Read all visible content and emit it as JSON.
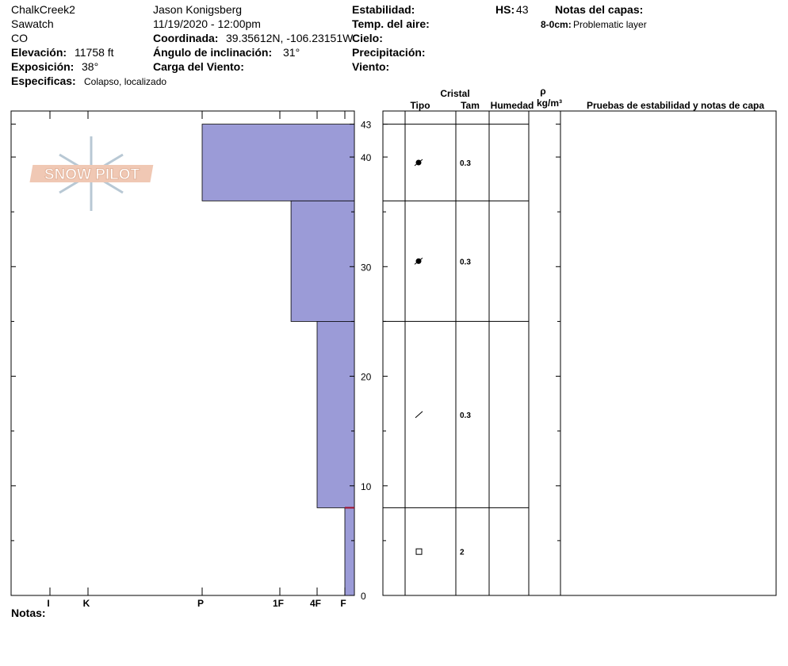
{
  "header": {
    "site": "ChalkCreek2",
    "range": "Sawatch",
    "state": "CO",
    "elevation_label": "Elevación:",
    "elevation": "11758 ft",
    "aspect_label": "Exposición:",
    "aspect": "38°",
    "specifics_label": "Especificas:",
    "specifics": "Colapso, localizado",
    "observer": "Jason Konigsberg",
    "datetime": "11/19/2020 - 12:00pm",
    "coord_label": "Coordinada:",
    "coord": "39.35612N, -106.23151W",
    "slope_label": "Ángulo de inclinación:",
    "slope": "31°",
    "wind_load_label": "Carga del Viento:",
    "stability_label": "Estabilidad:",
    "air_temp_label": "Temp. del aire:",
    "sky_label": "Cielo:",
    "precip_label": "Precipitación:",
    "wind_label": "Viento:",
    "hs_label": "HS:",
    "hs": "43",
    "layer_notes_label": "Notas del capas:",
    "layer_note_range": "8-0cm:",
    "layer_note": "Problematic layer"
  },
  "logo": "SNOW PILOT",
  "notes_label": "Notas:",
  "table_headers": {
    "crystal": "Cristal",
    "type": "Tipo",
    "size": "Tam",
    "moisture": "Humedad",
    "rho": "ρ",
    "density_unit": "kg/m³",
    "tests": "Pruebas de estabilidad y notas de capa"
  },
  "profile": {
    "ylim": [
      0,
      44.2
    ],
    "yticks": [
      0,
      10,
      20,
      30,
      40,
      43
    ],
    "minor_yticks": [
      5,
      15,
      25,
      35
    ],
    "hardness_ticks": [
      {
        "value": 1,
        "label": "F"
      },
      {
        "value": 2,
        "label": "4F"
      },
      {
        "value": 3,
        "label": "1F"
      },
      {
        "value": 4,
        "label": "P"
      },
      {
        "value": 5,
        "label": "K"
      },
      {
        "value": 6,
        "label": "I"
      }
    ],
    "color": "#9b9bd7",
    "layers": [
      {
        "top": 43,
        "bottom": 36,
        "hardness": 4,
        "size": 0.3
      },
      {
        "top": 36,
        "bottom": 25,
        "hardness": 2.7,
        "size": 0.3
      },
      {
        "top": 25,
        "bottom": 8,
        "hardness": 2,
        "size": 0.3
      },
      {
        "top": 8,
        "bottom": 0,
        "hardness": 1,
        "size": 2
      }
    ]
  }
}
